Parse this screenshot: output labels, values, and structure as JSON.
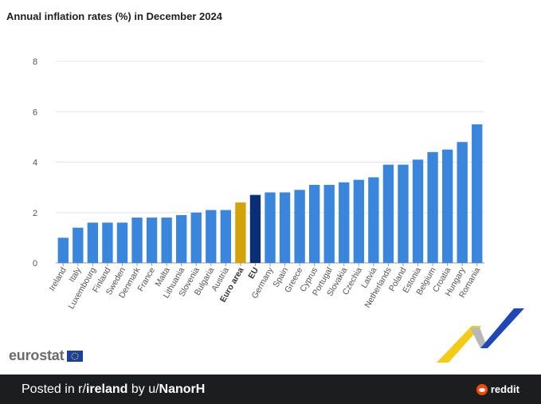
{
  "chart_data": {
    "type": "bar",
    "title": "Annual inflation rates (%) in December 2024",
    "categories": [
      "Ireland",
      "Italy",
      "Luxembourg",
      "Finland",
      "Sweden",
      "Denmark",
      "France",
      "Malta",
      "Lithuania",
      "Slovenia",
      "Bulgaria",
      "Austria",
      "Euro area",
      "EU",
      "Germany",
      "Spain",
      "Greece",
      "Cyprus",
      "Portugal",
      "Slovakia",
      "Czechia",
      "Latvia",
      "Netherlands",
      "Poland",
      "Estonia",
      "Belgium",
      "Croatia",
      "Hungary",
      "Romania"
    ],
    "values": [
      1.0,
      1.4,
      1.6,
      1.6,
      1.6,
      1.8,
      1.8,
      1.8,
      1.9,
      2.0,
      2.1,
      2.1,
      2.4,
      2.7,
      2.8,
      2.8,
      2.9,
      3.1,
      3.1,
      3.2,
      3.3,
      3.4,
      3.9,
      3.9,
      4.1,
      4.4,
      4.5,
      4.8,
      5.5
    ],
    "yticks": [
      0,
      2,
      4,
      6,
      8
    ],
    "ylim": [
      0,
      8
    ],
    "grid": true,
    "colors": {
      "default": "#3a86dd",
      "highlight": {
        "Euro area": "#d4a20a",
        "EU": "#0b2f76"
      }
    },
    "bold_categories": [
      "Euro area",
      "EU"
    ]
  },
  "branding": {
    "logo_text": "eurostat"
  },
  "footer": {
    "prefix": "Posted in r/",
    "subreddit": "ireland",
    "by": " by u/",
    "user": "NanorH",
    "brand": "reddit"
  }
}
